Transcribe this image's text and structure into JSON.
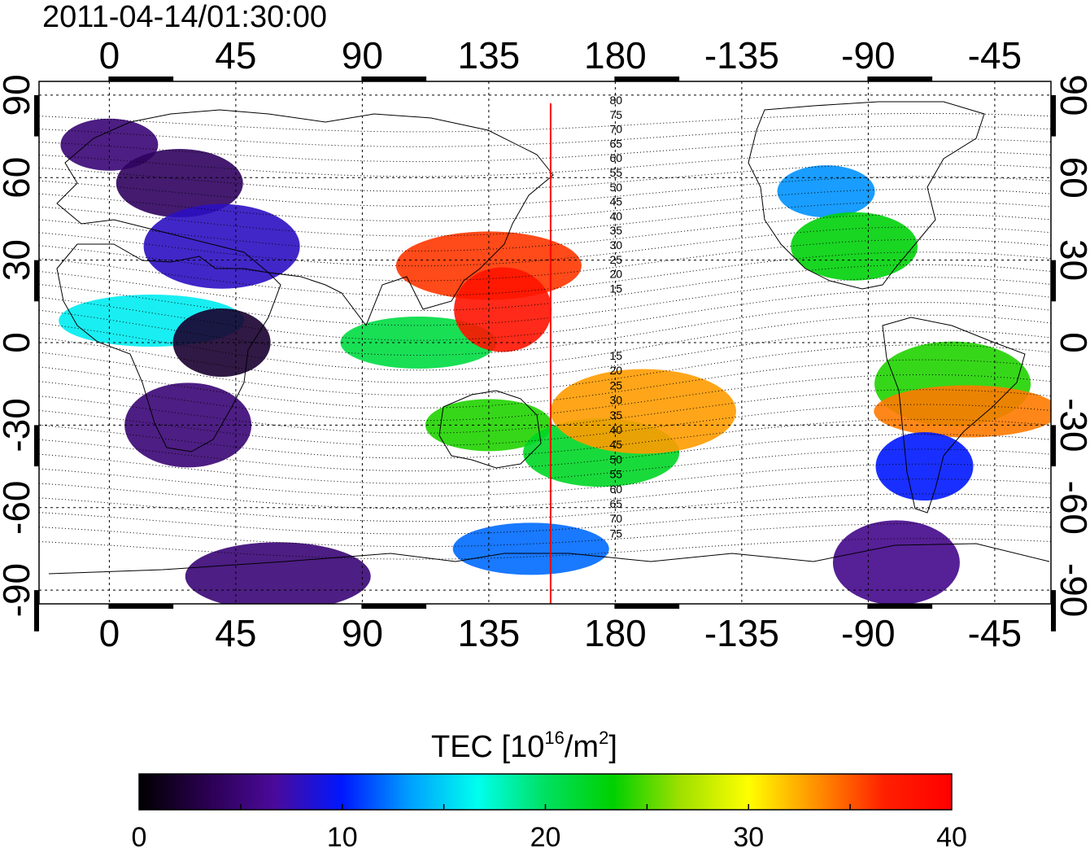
{
  "timestamp": "2011-04-14/01:30:00",
  "map": {
    "x_ticks": [
      "0",
      "45",
      "90",
      "135",
      "180",
      "-135",
      "-90",
      "-45"
    ],
    "y_ticks": [
      "90",
      "60",
      "30",
      "0",
      "-30",
      "-60",
      "-90"
    ],
    "lon_range": [
      -25,
      335
    ],
    "lat_range": [
      -95,
      95
    ],
    "terminator_lon": 157
  },
  "magnetic_lat_labels": {
    "north": [
      "80",
      "75",
      "70",
      "65",
      "60",
      "55",
      "50",
      "45",
      "40",
      "35",
      "30",
      "25",
      "20",
      "15"
    ],
    "south": [
      "15",
      "20",
      "25",
      "30",
      "35",
      "40",
      "45",
      "50",
      "55",
      "60",
      "65",
      "70",
      "75"
    ]
  },
  "colorbar": {
    "title_main": "TEC  [10",
    "title_sup1": "16",
    "title_mid": "/m",
    "title_sup2": "2",
    "title_end": "]",
    "ticks": [
      "0",
      "10",
      "20",
      "30",
      "40"
    ],
    "range": [
      0,
      40
    ],
    "colors": [
      "#000000",
      "#2a0050",
      "#4a0a9a",
      "#0018ff",
      "#00a0ff",
      "#00ffee",
      "#00e060",
      "#00d000",
      "#a0e000",
      "#ffff00",
      "#ff9000",
      "#ff2000",
      "#ff0000"
    ]
  },
  "tec_regions": [
    {
      "lon": 0,
      "lat": 72,
      "value": 5
    },
    {
      "lon": 25,
      "lat": 58,
      "value": 4
    },
    {
      "lon": 40,
      "lat": 35,
      "value": 8
    },
    {
      "lon": 15,
      "lat": 8,
      "value": 16
    },
    {
      "lon": 40,
      "lat": 0,
      "value": 2
    },
    {
      "lon": 28,
      "lat": -30,
      "value": 5
    },
    {
      "lon": 110,
      "lat": 0,
      "value": 21
    },
    {
      "lon": 135,
      "lat": 28,
      "value": 36
    },
    {
      "lon": 140,
      "lat": 12,
      "value": 38
    },
    {
      "lon": 135,
      "lat": -30,
      "value": 24
    },
    {
      "lon": 175,
      "lat": -40,
      "value": 22
    },
    {
      "lon": 190,
      "lat": -25,
      "value": 33
    },
    {
      "lon": -105,
      "lat": 55,
      "value": 13
    },
    {
      "lon": -95,
      "lat": 35,
      "value": 23
    },
    {
      "lon": -60,
      "lat": -15,
      "value": 24
    },
    {
      "lon": -55,
      "lat": -25,
      "value": 34
    },
    {
      "lon": -70,
      "lat": -45,
      "value": 10
    },
    {
      "lon": -80,
      "lat": -80,
      "value": 6
    },
    {
      "lon": 150,
      "lat": -75,
      "value": 12
    },
    {
      "lon": 60,
      "lat": -85,
      "value": 5
    }
  ]
}
